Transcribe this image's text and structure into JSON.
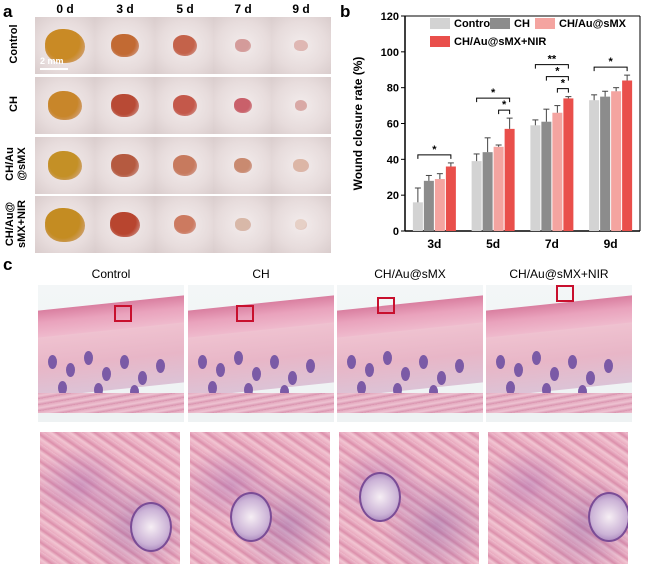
{
  "panel_a": {
    "letter": "a",
    "days": [
      "0 d",
      "3 d",
      "5 d",
      "7 d",
      "9 d"
    ],
    "rows": [
      {
        "label_lines": [
          "Control"
        ]
      },
      {
        "label_lines": [
          "CH"
        ]
      },
      {
        "label_lines": [
          "CH/Au",
          "@sMX"
        ]
      },
      {
        "label_lines": [
          "CH/Au@",
          "sMX+NIR"
        ]
      }
    ],
    "scale_label": "2 mm"
  },
  "panel_b": {
    "letter": "b"
  },
  "panel_c": {
    "letter": "c",
    "labels": [
      "Control",
      "CH",
      "CH/Au@sMX",
      "CH/Au@sMX+NIR"
    ]
  },
  "chart_data": {
    "type": "bar",
    "ylabel": "Wound closure rate (%)",
    "xlabel": "",
    "ylim": [
      0,
      120
    ],
    "yticks": [
      0,
      20,
      40,
      60,
      80,
      100,
      120
    ],
    "categories": [
      "3d",
      "5d",
      "7d",
      "9d"
    ],
    "legend_position": "top",
    "series": [
      {
        "name": "Control",
        "color": "#d3d3d3",
        "values": [
          16,
          39,
          59,
          73
        ],
        "errors": [
          8,
          4,
          3,
          3
        ]
      },
      {
        "name": "CH",
        "color": "#8c8c8c",
        "values": [
          28,
          44,
          61,
          75
        ],
        "errors": [
          3,
          8,
          7,
          3
        ]
      },
      {
        "name": "CH/Au@sMX",
        "color": "#f4a4a0",
        "values": [
          29,
          47,
          66,
          78
        ],
        "errors": [
          3,
          1,
          4,
          2
        ]
      },
      {
        "name": "CH/Au@sMX+NIR",
        "color": "#e94f4b",
        "values": [
          36,
          57,
          74,
          84
        ],
        "errors": [
          2,
          6,
          1,
          3
        ]
      }
    ],
    "significance": [
      {
        "category": "3d",
        "marks": [
          "*"
        ]
      },
      {
        "category": "5d",
        "marks": [
          "*",
          "*"
        ]
      },
      {
        "category": "7d",
        "marks": [
          "**",
          "*",
          "*"
        ]
      },
      {
        "category": "9d",
        "marks": [
          "*"
        ]
      }
    ]
  }
}
